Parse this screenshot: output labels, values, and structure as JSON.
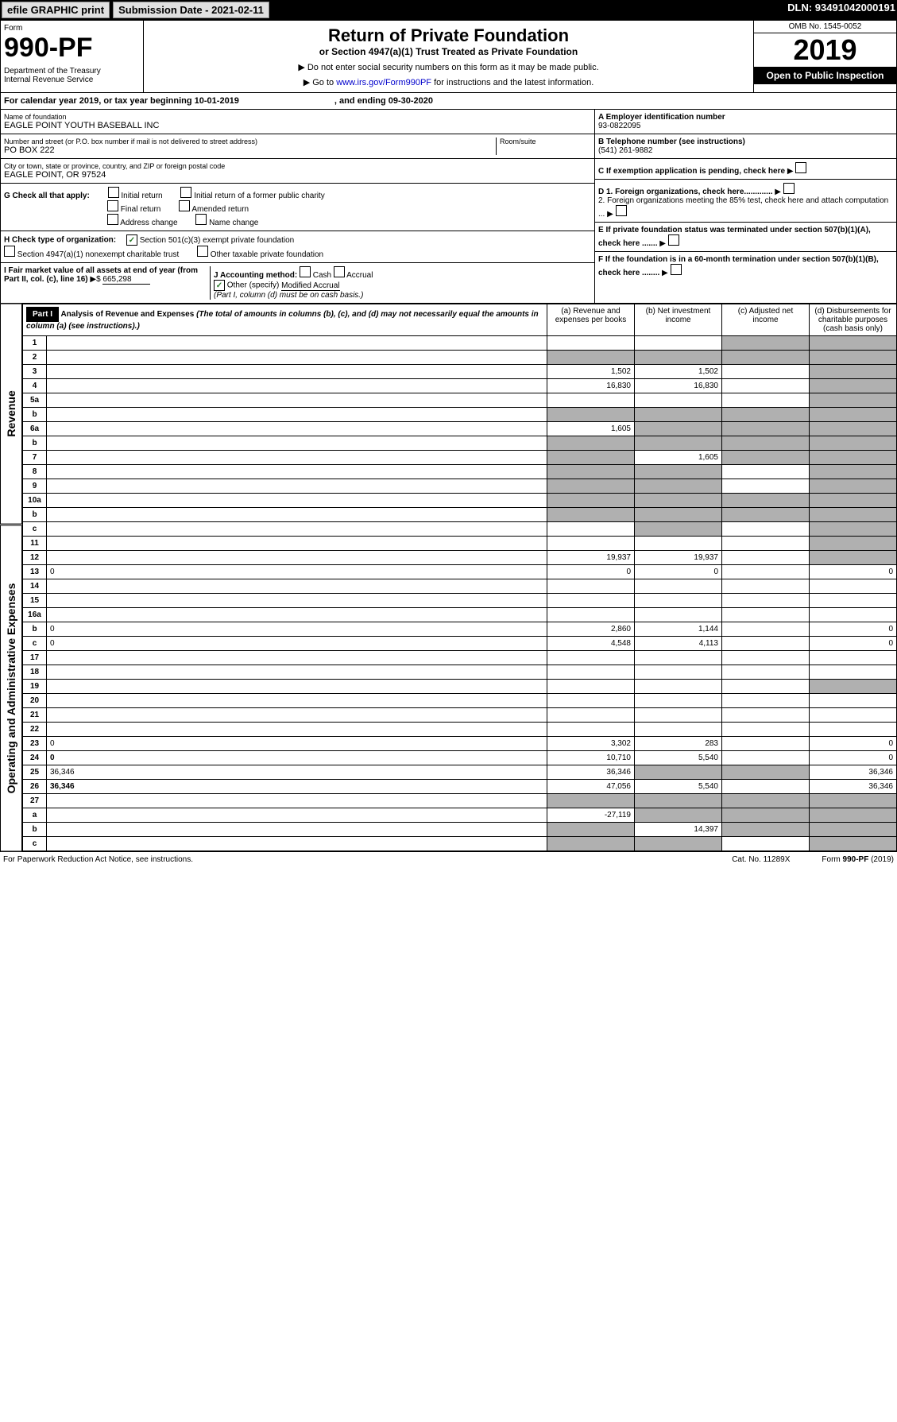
{
  "topbar": {
    "efile": "efile GRAPHIC print",
    "submission": "Submission Date - 2021-02-11",
    "dln": "DLN: 93491042000191"
  },
  "header": {
    "form_label": "Form",
    "form_num": "990-PF",
    "dept": "Department of the Treasury\nInternal Revenue Service",
    "title": "Return of Private Foundation",
    "subtitle": "or Section 4947(a)(1) Trust Treated as Private Foundation",
    "note1": "▶ Do not enter social security numbers on this form as it may be made public.",
    "note2": "▶ Go to www.irs.gov/Form990PF for instructions and the latest information.",
    "link": "www.irs.gov/Form990PF",
    "omb": "OMB No. 1545-0052",
    "year": "2019",
    "open": "Open to Public Inspection"
  },
  "calyear": {
    "text": "For calendar year 2019, or tax year beginning 10-01-2019",
    "ending": ", and ending 09-30-2020"
  },
  "entity": {
    "name_label": "Name of foundation",
    "name": "EAGLE POINT YOUTH BASEBALL INC",
    "addr_label": "Number and street (or P.O. box number if mail is not delivered to street address)",
    "addr": "PO BOX 222",
    "room_label": "Room/suite",
    "city_label": "City or town, state or province, country, and ZIP or foreign postal code",
    "city": "EAGLE POINT, OR  97524",
    "ein_label": "A Employer identification number",
    "ein": "93-0822095",
    "phone_label": "B Telephone number (see instructions)",
    "phone": "(541) 261-9882",
    "c_label": "C If exemption application is pending, check here",
    "d1": "D 1. Foreign organizations, check here.............",
    "d2": "2. Foreign organizations meeting the 85% test, check here and attach computation ...",
    "e_label": "E  If private foundation status was terminated under section 507(b)(1)(A), check here .......",
    "f_label": "F  If the foundation is in a 60-month termination under section 507(b)(1)(B), check here ........"
  },
  "g": {
    "label": "G Check all that apply:",
    "opts": [
      "Initial return",
      "Initial return of a former public charity",
      "Final return",
      "Amended return",
      "Address change",
      "Name change"
    ]
  },
  "h": {
    "label": "H Check type of organization:",
    "opt1": "Section 501(c)(3) exempt private foundation",
    "opt2": "Section 4947(a)(1) nonexempt charitable trust",
    "opt3": "Other taxable private foundation"
  },
  "i": {
    "label": "I Fair market value of all assets at end of year (from Part II, col. (c), line 16)",
    "val": "665,298"
  },
  "j": {
    "label": "J Accounting method:",
    "cash": "Cash",
    "accrual": "Accrual",
    "other": "Other (specify)",
    "other_val": "Modified Accrual",
    "note": "(Part I, column (d) must be on cash basis.)"
  },
  "part1": {
    "label": "Part I",
    "title": "Analysis of Revenue and Expenses",
    "note": "(The total of amounts in columns (b), (c), and (d) may not necessarily equal the amounts in column (a) (see instructions).)",
    "cols": {
      "a": "(a)  Revenue and expenses per books",
      "b": "(b)  Net investment income",
      "c": "(c)  Adjusted net income",
      "d": "(d)  Disbursements for charitable purposes (cash basis only)"
    }
  },
  "sides": {
    "revenue": "Revenue",
    "expenses": "Operating and Administrative Expenses"
  },
  "rows": [
    {
      "n": "1",
      "d": "",
      "a": "",
      "b": "",
      "c": "",
      "cs": true,
      "ds": true
    },
    {
      "n": "2",
      "d": "",
      "a": "",
      "b": "",
      "c": "",
      "as": true,
      "bs": true,
      "cs": true,
      "ds": true
    },
    {
      "n": "3",
      "d": "",
      "a": "1,502",
      "b": "1,502",
      "c": "",
      "ds": true
    },
    {
      "n": "4",
      "d": "",
      "a": "16,830",
      "b": "16,830",
      "c": "",
      "ds": true
    },
    {
      "n": "5a",
      "d": "",
      "a": "",
      "b": "",
      "c": "",
      "ds": true
    },
    {
      "n": "b",
      "d": "",
      "a": "",
      "b": "",
      "c": "",
      "as": true,
      "bs": true,
      "cs": true,
      "ds": true
    },
    {
      "n": "6a",
      "d": "",
      "a": "1,605",
      "b": "",
      "c": "",
      "bs": true,
      "cs": true,
      "ds": true
    },
    {
      "n": "b",
      "d": "",
      "a": "",
      "b": "",
      "c": "",
      "as": true,
      "bs": true,
      "cs": true,
      "ds": true
    },
    {
      "n": "7",
      "d": "",
      "a": "",
      "b": "1,605",
      "c": "",
      "as": true,
      "cs": true,
      "ds": true
    },
    {
      "n": "8",
      "d": "",
      "a": "",
      "b": "",
      "c": "",
      "as": true,
      "bs": true,
      "ds": true
    },
    {
      "n": "9",
      "d": "",
      "a": "",
      "b": "",
      "c": "",
      "as": true,
      "bs": true,
      "ds": true
    },
    {
      "n": "10a",
      "d": "",
      "a": "",
      "b": "",
      "c": "",
      "as": true,
      "bs": true,
      "cs": true,
      "ds": true
    },
    {
      "n": "b",
      "d": "",
      "a": "",
      "b": "",
      "c": "",
      "as": true,
      "bs": true,
      "cs": true,
      "ds": true
    },
    {
      "n": "c",
      "d": "",
      "a": "",
      "b": "",
      "c": "",
      "bs": true,
      "ds": true
    },
    {
      "n": "11",
      "d": "",
      "a": "",
      "b": "",
      "c": "",
      "ds": true
    },
    {
      "n": "12",
      "d": "",
      "a": "19,937",
      "b": "19,937",
      "c": "",
      "bold": true,
      "ds": true
    },
    {
      "n": "13",
      "d": "0",
      "a": "0",
      "b": "0",
      "c": ""
    },
    {
      "n": "14",
      "d": "",
      "a": "",
      "b": "",
      "c": ""
    },
    {
      "n": "15",
      "d": "",
      "a": "",
      "b": "",
      "c": ""
    },
    {
      "n": "16a",
      "d": "",
      "a": "",
      "b": "",
      "c": ""
    },
    {
      "n": "b",
      "d": "0",
      "a": "2,860",
      "b": "1,144",
      "c": ""
    },
    {
      "n": "c",
      "d": "0",
      "a": "4,548",
      "b": "4,113",
      "c": ""
    },
    {
      "n": "17",
      "d": "",
      "a": "",
      "b": "",
      "c": ""
    },
    {
      "n": "18",
      "d": "",
      "a": "",
      "b": "",
      "c": ""
    },
    {
      "n": "19",
      "d": "",
      "a": "",
      "b": "",
      "c": "",
      "ds": true
    },
    {
      "n": "20",
      "d": "",
      "a": "",
      "b": "",
      "c": ""
    },
    {
      "n": "21",
      "d": "",
      "a": "",
      "b": "",
      "c": ""
    },
    {
      "n": "22",
      "d": "",
      "a": "",
      "b": "",
      "c": ""
    },
    {
      "n": "23",
      "d": "0",
      "a": "3,302",
      "b": "283",
      "c": ""
    },
    {
      "n": "24",
      "d": "0",
      "a": "10,710",
      "b": "5,540",
      "c": "",
      "bold": true
    },
    {
      "n": "25",
      "d": "36,346",
      "a": "36,346",
      "b": "",
      "c": "",
      "bs": true,
      "cs": true
    },
    {
      "n": "26",
      "d": "36,346",
      "a": "47,056",
      "b": "5,540",
      "c": "",
      "bold": true
    },
    {
      "n": "27",
      "d": "",
      "a": "",
      "b": "",
      "c": "",
      "as": true,
      "bs": true,
      "cs": true,
      "ds": true
    },
    {
      "n": "a",
      "d": "",
      "a": "-27,119",
      "b": "",
      "c": "",
      "bold": true,
      "bs": true,
      "cs": true,
      "ds": true
    },
    {
      "n": "b",
      "d": "",
      "a": "",
      "b": "14,397",
      "c": "",
      "bold": true,
      "as": true,
      "cs": true,
      "ds": true
    },
    {
      "n": "c",
      "d": "",
      "a": "",
      "b": "",
      "c": "",
      "bold": true,
      "as": true,
      "bs": true,
      "ds": true
    }
  ],
  "footer": {
    "left": "For Paperwork Reduction Act Notice, see instructions.",
    "cat": "Cat. No. 11289X",
    "form": "Form 990-PF (2019)"
  }
}
